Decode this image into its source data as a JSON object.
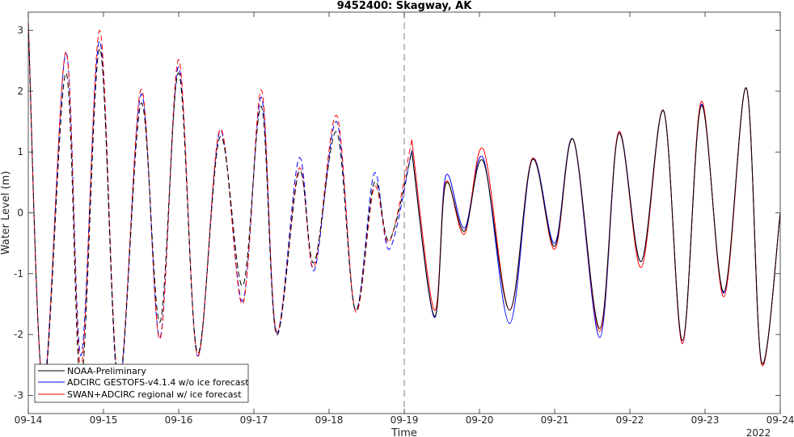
{
  "chart_data": {
    "type": "line",
    "title": "9452400: Skagway, AK",
    "xlabel": "Time",
    "ylabel": "Water Level (m)",
    "year_label": "2022",
    "xlim": [
      "09-14",
      "09-24"
    ],
    "ylim": [
      -3.3,
      3.3
    ],
    "x_ticks": [
      "09-14",
      "09-15",
      "09-16",
      "09-17",
      "09-18",
      "09-19",
      "09-20",
      "09-21",
      "09-22",
      "09-23",
      "09-24"
    ],
    "y_ticks": [
      -3,
      -2,
      -1,
      0,
      1,
      2,
      3
    ],
    "y_tick_labels": [
      "-3",
      "-2",
      "-1",
      "0",
      "1",
      "2",
      "3"
    ],
    "forecast_start": "09-19",
    "grid": false,
    "legend_position": "bottom-left",
    "legend": [
      "NOAA-Preliminary",
      "ADCIRC GESTOFS-v4.1.4 w/o ice forecast",
      "SWAN+ADCIRC regional w/ ice forecast"
    ],
    "series": [
      {
        "name": "NOAA-Preliminary",
        "color": "#000000",
        "dashed_before_forecast": true,
        "x_days": [
          0.0,
          0.2,
          0.5,
          0.7,
          0.95,
          1.2,
          1.5,
          1.75,
          2.0,
          2.25,
          2.55,
          2.85,
          3.1,
          3.3,
          3.6,
          3.8,
          4.1,
          4.35,
          4.6,
          4.8,
          5.1,
          5.4,
          5.55,
          5.8,
          6.05,
          6.4,
          6.7,
          7.0,
          7.25,
          7.6,
          7.85,
          8.15,
          8.45,
          8.7,
          8.95,
          9.25,
          9.55,
          9.75,
          10.0
        ],
        "y": [
          3.1,
          -2.9,
          2.3,
          -2.8,
          2.7,
          -2.8,
          1.8,
          -1.8,
          2.3,
          -2.3,
          1.25,
          -1.2,
          1.75,
          -2.0,
          0.68,
          -0.82,
          1.33,
          -1.6,
          0.5,
          -0.45,
          1.01,
          -1.7,
          0.47,
          -0.3,
          0.85,
          -1.6,
          0.87,
          -0.55,
          1.2,
          -1.9,
          1.3,
          -0.8,
          1.67,
          -2.1,
          1.76,
          -1.3,
          2.05,
          -2.45,
          0.0
        ]
      },
      {
        "name": "ADCIRC GESTOFS-v4.1.4 w/o ice forecast",
        "color": "#0000ff",
        "dashed_before_forecast": true,
        "x_days": [
          0.0,
          0.2,
          0.5,
          0.7,
          0.95,
          1.2,
          1.5,
          1.75,
          2.0,
          2.25,
          2.55,
          2.85,
          3.1,
          3.3,
          3.6,
          3.8,
          4.1,
          4.35,
          4.6,
          4.8,
          5.1,
          5.4,
          5.55,
          5.8,
          6.05,
          6.4,
          6.7,
          7.0,
          7.25,
          7.6,
          7.85,
          8.15,
          8.45,
          8.7,
          8.95,
          9.25,
          9.55,
          9.75,
          10.0
        ],
        "y": [
          3.05,
          -2.85,
          2.62,
          -2.35,
          2.82,
          -2.9,
          1.95,
          -2.05,
          2.4,
          -2.35,
          1.35,
          -1.45,
          1.9,
          -1.97,
          0.9,
          -0.95,
          1.5,
          -1.6,
          0.65,
          -0.6,
          1.03,
          -1.72,
          0.6,
          -0.25,
          0.9,
          -1.82,
          0.88,
          -0.5,
          1.2,
          -2.05,
          1.32,
          -0.8,
          1.68,
          -2.15,
          1.78,
          -1.32,
          2.05,
          -2.45,
          0.0
        ]
      },
      {
        "name": "SWAN+ADCIRC regional w/ ice forecast",
        "color": "#ff0000",
        "dashed_before_forecast": true,
        "x_days": [
          0.0,
          0.2,
          0.5,
          0.7,
          0.95,
          1.2,
          1.5,
          1.75,
          2.0,
          2.25,
          2.55,
          2.85,
          3.1,
          3.3,
          3.6,
          3.8,
          4.1,
          4.35,
          4.6,
          4.8,
          5.1,
          5.4,
          5.55,
          5.8,
          6.05,
          6.4,
          6.7,
          7.0,
          7.25,
          7.6,
          7.85,
          8.15,
          8.45,
          8.7,
          8.95,
          9.25,
          9.55,
          9.75,
          10.0
        ],
        "y": [
          3.15,
          -2.9,
          2.65,
          -2.55,
          3.0,
          -2.8,
          2.03,
          -2.08,
          2.52,
          -2.35,
          1.38,
          -1.5,
          2.02,
          -1.95,
          0.73,
          -0.9,
          1.6,
          -1.62,
          0.42,
          -0.48,
          1.2,
          -1.6,
          0.5,
          -0.35,
          1.05,
          -1.6,
          0.89,
          -0.6,
          1.2,
          -1.95,
          1.33,
          -0.9,
          1.68,
          -2.15,
          1.83,
          -1.38,
          2.05,
          -2.48,
          0.0
        ]
      }
    ]
  }
}
